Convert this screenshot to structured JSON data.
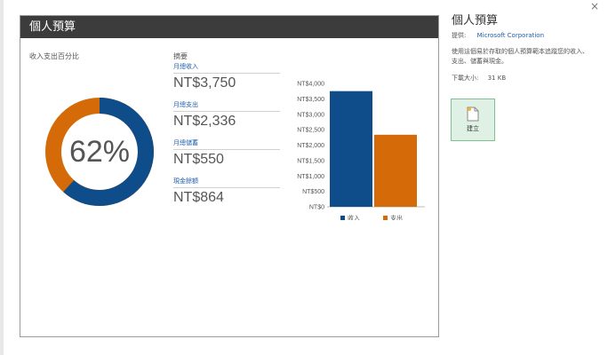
{
  "preview": {
    "title": "個人預算",
    "pct_section_label": "收入支出百分比",
    "donut_percent": "62%",
    "summary_label": "摘要",
    "summary_items": [
      {
        "label": "月總收入",
        "value": "NT$3,750"
      },
      {
        "label": "月總支出",
        "value": "NT$2,336"
      },
      {
        "label": "月總儲蓄",
        "value": "NT$550"
      },
      {
        "label": "現金餘額",
        "value": "NT$864"
      }
    ],
    "colors": {
      "income": "#0f4c8a",
      "expense": "#d46b08",
      "title_bar": "#3c3c3c"
    }
  },
  "chart_data": {
    "type": "bar",
    "categories": [
      "收入",
      "支出"
    ],
    "values": [
      3750,
      2336
    ],
    "y_ticks": [
      "NT$0",
      "NT$500",
      "NT$1,000",
      "NT$1,500",
      "NT$2,000",
      "NT$2,500",
      "NT$3,000",
      "NT$3,500",
      "NT$4,000"
    ],
    "ylim": [
      0,
      4000
    ],
    "legend": [
      "收入",
      "支出"
    ],
    "legend_placement": "bottom"
  },
  "side": {
    "title": "個人預算",
    "close_glyph": "×",
    "provider_label": "提供:",
    "provider_name": "Microsoft Corporation",
    "description": "使用這個易於存取的個人預算範本追蹤您的收入、支出、儲蓄與現金。",
    "size_label": "下載大小:",
    "size_value": "31 KB",
    "create_label": "建立"
  }
}
